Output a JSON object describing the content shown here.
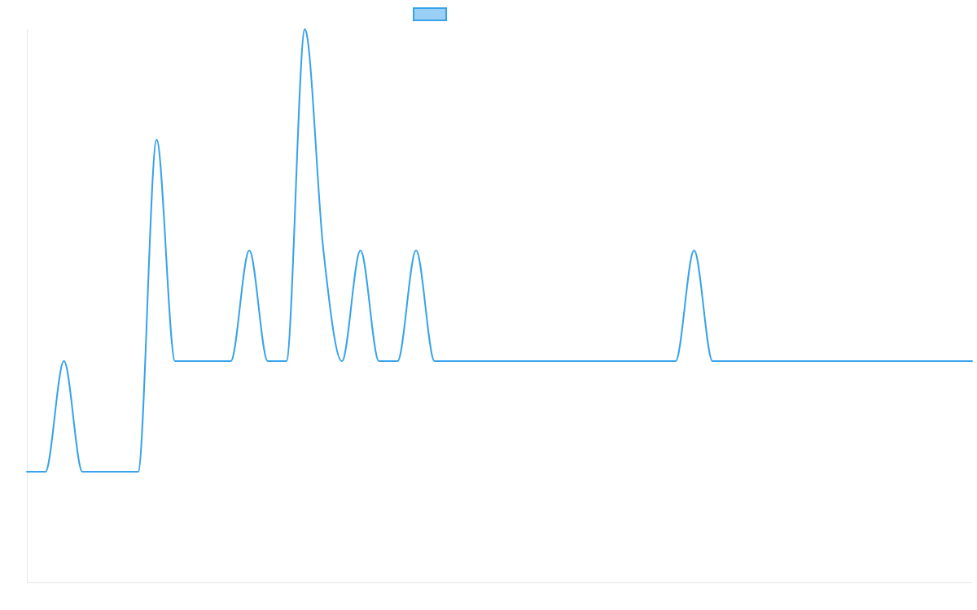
{
  "chart_data": {
    "type": "line",
    "x": [
      0,
      1,
      2,
      3,
      4,
      5,
      6,
      7,
      8,
      9,
      10,
      11,
      12,
      13,
      14,
      15,
      16,
      17,
      18,
      19,
      20,
      21,
      22,
      23,
      24,
      25,
      26,
      27,
      28,
      29,
      30,
      31,
      32,
      33,
      34,
      35,
      36,
      37,
      38,
      39,
      40,
      41,
      42,
      43,
      44,
      45,
      46,
      47,
      48,
      49,
      50,
      51
    ],
    "series": [
      {
        "name": "",
        "values": [
          1,
          1,
          2,
          1,
          1,
          1,
          1,
          4,
          2,
          2,
          2,
          2,
          3,
          2,
          2,
          5,
          3,
          2,
          3,
          2,
          2,
          3,
          2,
          2,
          2,
          2,
          2,
          2,
          2,
          2,
          2,
          2,
          2,
          2,
          2,
          2,
          3,
          2,
          2,
          2,
          2,
          2,
          2,
          2,
          2,
          2,
          2,
          2,
          2,
          2,
          2,
          2
        ]
      }
    ],
    "ylim": [
      0,
      5
    ],
    "grid": false,
    "legend": "top-center",
    "colors": {
      "line": "#36a2eb",
      "legend_fill": "#9ad0f5",
      "axis": "#e6e6e6"
    }
  }
}
